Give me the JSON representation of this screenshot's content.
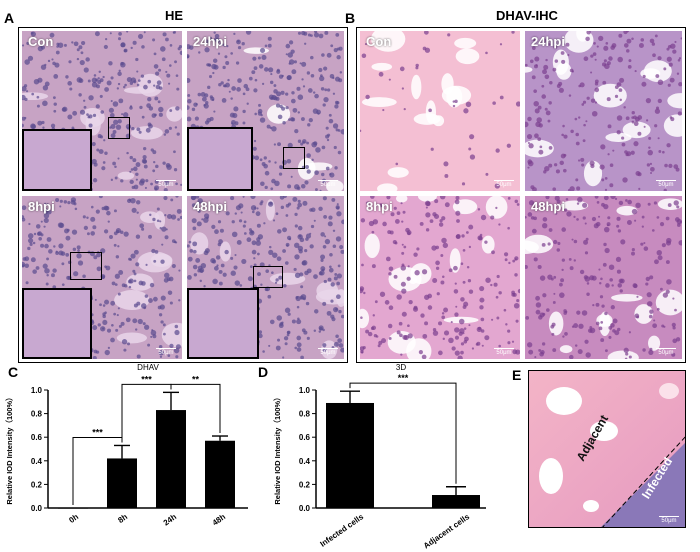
{
  "panels": {
    "A": {
      "letter": "A",
      "title": "HE",
      "tiles": [
        "Con",
        "24hpi",
        "8hpi",
        "48hpi"
      ],
      "scale": "50μm"
    },
    "B": {
      "letter": "B",
      "title": "DHAV-IHC",
      "tiles": [
        "Con",
        "24hpi",
        "8hpi",
        "48hpi"
      ],
      "scale": "50μm"
    },
    "C": {
      "letter": "C"
    },
    "D": {
      "letter": "D"
    },
    "E": {
      "letter": "E",
      "labels": [
        "Adjacent",
        "Infected"
      ],
      "scale": "50μm"
    }
  },
  "colors": {
    "he_bg": "#c7a3c4",
    "he_nuclei": "#5a4a8e",
    "ihc_bg": "#f2b8cf",
    "ihc_dark": "#7a3f8e",
    "bar": "#000000"
  },
  "chart_data": [
    {
      "type": "bar",
      "title": "DHAV",
      "ylabel": "Relative IOD Intensity（100%）",
      "categories": [
        "0h",
        "8h",
        "24h",
        "48h"
      ],
      "values": [
        0.0,
        0.42,
        0.83,
        0.57
      ],
      "errors": [
        0.0,
        0.11,
        0.15,
        0.04
      ],
      "ylim": [
        0.0,
        1.0
      ],
      "yticks": [
        "0.0",
        "0.2",
        "0.4",
        "0.6",
        "0.8",
        "1.0"
      ],
      "significance": [
        {
          "from": "0h",
          "to": "8h",
          "label": "***"
        },
        {
          "from": "8h",
          "to": "24h",
          "label": "***"
        },
        {
          "from": "24h",
          "to": "48h",
          "label": "**"
        }
      ]
    },
    {
      "type": "bar",
      "title": "3D",
      "ylabel": "Relative IOD Intensity（100%）",
      "categories": [
        "Infected cells",
        "Adjacent cells"
      ],
      "values": [
        0.89,
        0.11
      ],
      "errors": [
        0.1,
        0.07
      ],
      "ylim": [
        0.0,
        1.0
      ],
      "yticks": [
        "0.0",
        "0.2",
        "0.4",
        "0.6",
        "0.8",
        "1.0"
      ],
      "significance": [
        {
          "from": "Infected cells",
          "to": "Adjacent cells",
          "label": "***"
        }
      ]
    }
  ]
}
